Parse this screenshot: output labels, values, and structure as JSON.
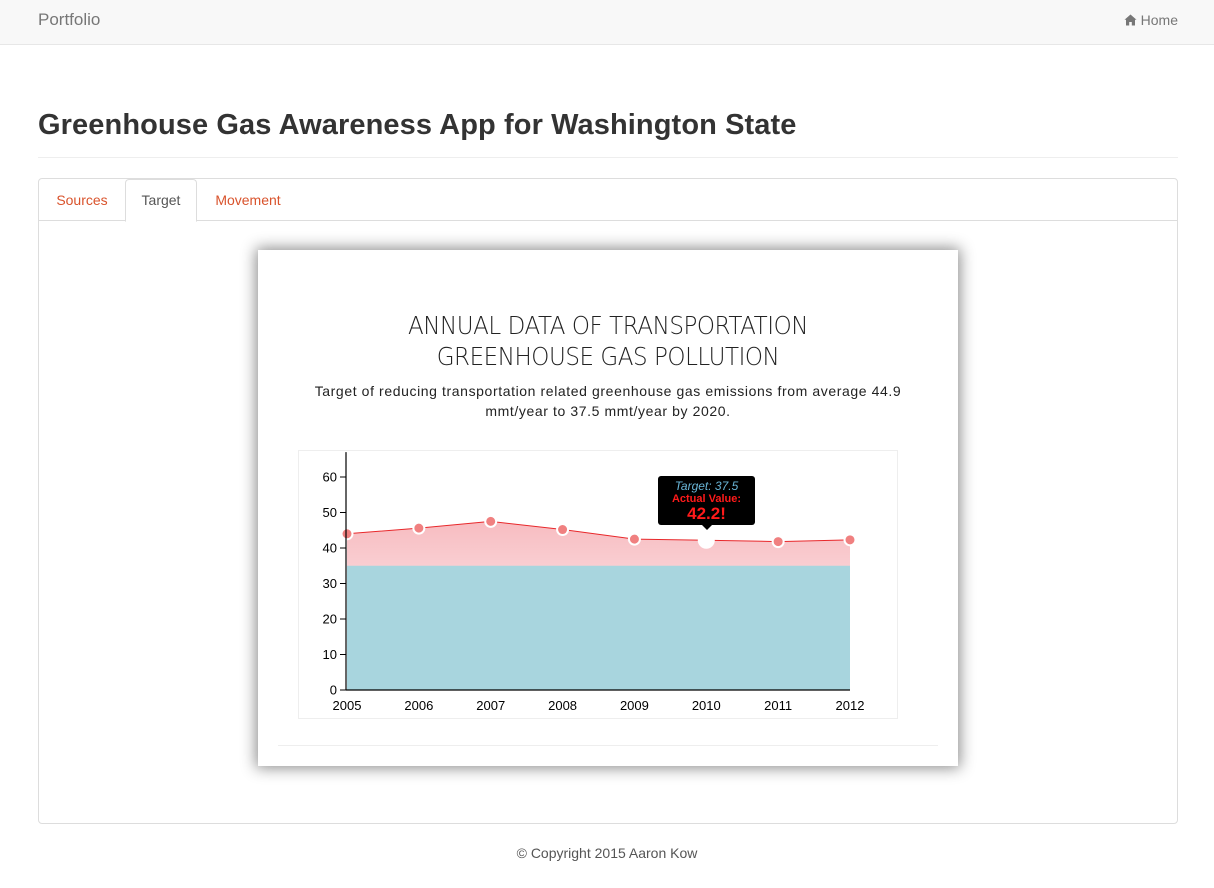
{
  "navbar": {
    "brand": "Portfolio",
    "home_label": "Home",
    "home_icon": "home-icon"
  },
  "page": {
    "title": "Greenhouse Gas Awareness App for Washington State"
  },
  "tabs": [
    {
      "label": "Sources",
      "active": false
    },
    {
      "label": "Target",
      "active": true
    },
    {
      "label": "Movement",
      "active": false
    }
  ],
  "colors": {
    "accent": "#d9532c",
    "area_fill": "#a8d5de",
    "line": "#e8282b",
    "marker": "#f08080"
  },
  "chart_data": {
    "type": "area",
    "title": "ANNUAL DATA OF TRANSPORTATION GREENHOUSE GAS POLLUTION",
    "title_lines": [
      "ANNUAL DATA OF TRANSPORTATION",
      "GREENHOUSE GAS POLLUTION"
    ],
    "subtitle": "Target of reducing transportation related greenhouse gas emissions from average 44.9 mmt/year to 37.5 mmt/year by 2020.",
    "x": [
      2005,
      2006,
      2007,
      2008,
      2009,
      2010,
      2011,
      2012
    ],
    "series": [
      {
        "values": [
          44.0,
          45.6,
          47.5,
          45.2,
          42.5,
          42.2,
          41.8,
          42.3
        ]
      }
    ],
    "target": 37.5,
    "ylim": [
      0,
      67
    ],
    "yticks": [
      0,
      10,
      20,
      30,
      40,
      50,
      60
    ],
    "xlabel": "",
    "ylabel": "",
    "grid": false,
    "highlighted_index": 5,
    "tooltip": {
      "target_text": "Target: 37.5",
      "actual_label": "Actual Value:",
      "actual_value": "42.2!"
    }
  },
  "footer": {
    "copyright": "© Copyright 2015 Aaron Kow"
  }
}
